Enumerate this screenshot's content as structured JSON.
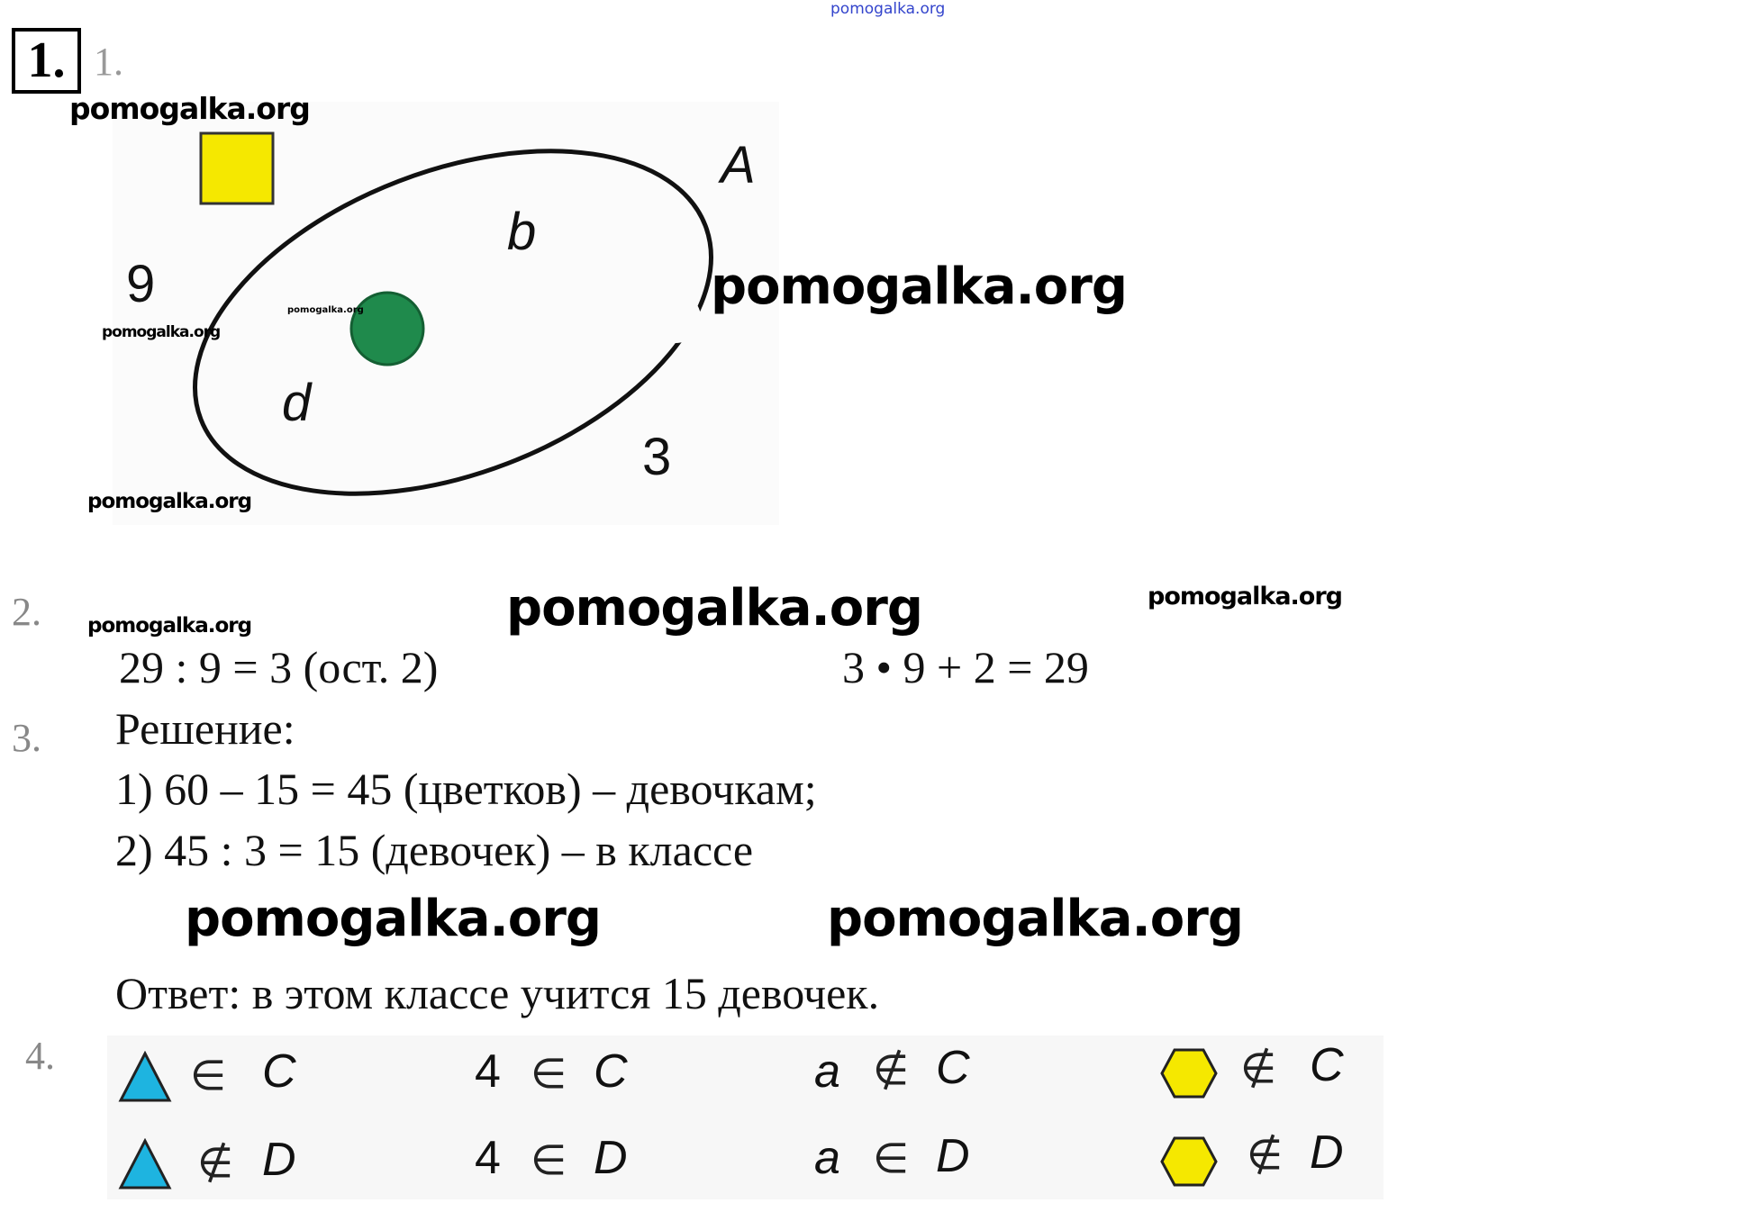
{
  "watermark_top": "pomogalka.org",
  "watermarks": {
    "w1": "pomogalka.org",
    "w2": "pomogalka.org",
    "w3": "pomogalka.org",
    "w4": "pomogalka.org",
    "w5": "pomogalka.org",
    "w6": "pomogalka.org",
    "w7": "pomogalka.org",
    "w8": "pomogalka.org",
    "w9": "pomogalka.org",
    "w10": "pomogalka.org",
    "w11": "pomogalka.org"
  },
  "task1": {
    "badge": "1.",
    "number": "1.",
    "diagram": {
      "set_label": "A",
      "label_b": "b",
      "label_d": "d",
      "label_9": "9",
      "label_3": "3",
      "square_color": "#f5e800",
      "circle_color": "#1f8a4c"
    }
  },
  "task2": {
    "number": "2.",
    "eq1": "29 : 9 = 3 (ост. 2)",
    "eq2": "3 • 9 + 2 = 29"
  },
  "task3": {
    "number": "3.",
    "heading": "Решение:",
    "step1": "1)  60 – 15 = 45 (цветков) – девочкам;",
    "step2": "2)  45 : 3 = 15 (девочек) – в классе",
    "answer": "Ответ: в этом классе учится 15 девочек."
  },
  "task4": {
    "number": "4.",
    "triangle_color": "#1eb4e0",
    "hexagon_color": "#f5e800",
    "rows": [
      [
        {
          "sym": "∈",
          "set": "C"
        },
        {
          "el": "4",
          "sym": "∈",
          "set": "C"
        },
        {
          "el": "a",
          "sym": "∉",
          "set": "C"
        },
        {
          "sym": "∉",
          "set": "C"
        }
      ],
      [
        {
          "sym": "∉",
          "set": "D"
        },
        {
          "el": "4",
          "sym": "∈",
          "set": "D"
        },
        {
          "el": "a",
          "sym": "∈",
          "set": "D"
        },
        {
          "sym": "∉",
          "set": "D"
        }
      ]
    ]
  }
}
